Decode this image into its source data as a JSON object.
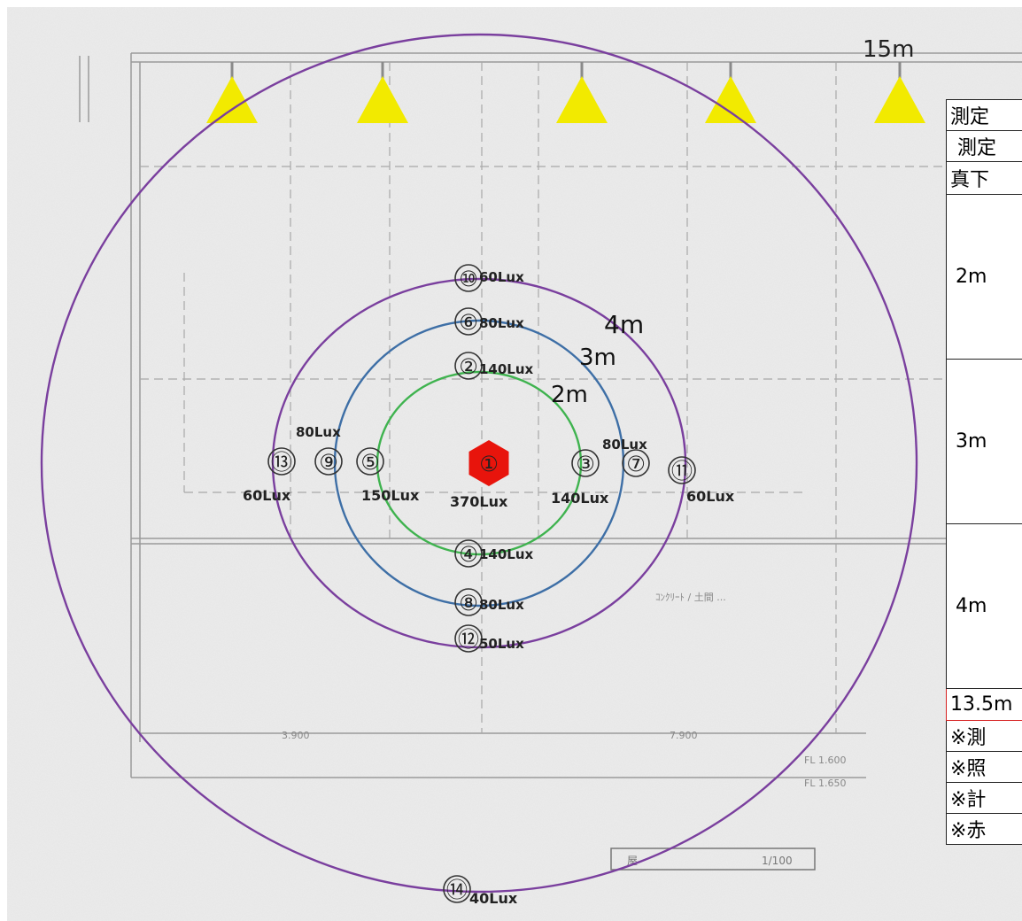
{
  "plan": {
    "scale_label": "15m",
    "floor_note": "ｺﾝｸﾘｰﾄ / 土間 ...",
    "dim_left": "3.900",
    "dim_right": "7.900",
    "level_1": "FL 1.600",
    "level_2": "FL 1.650",
    "stamp_1": "屋",
    "stamp_2": "1/100"
  },
  "rings": [
    {
      "label": "2m",
      "color": "#3fb34f"
    },
    {
      "label": "3m",
      "color": "#3e6fa6"
    },
    {
      "label": "4m",
      "color": "#7a3f9e"
    },
    {
      "label": "",
      "color": "#7a3f9e"
    }
  ],
  "points": [
    {
      "num": "①",
      "lux": "370Lux",
      "center": true
    },
    {
      "num": "②",
      "lux": "140Lux"
    },
    {
      "num": "③",
      "lux": "140Lux"
    },
    {
      "num": "④",
      "lux": "140Lux"
    },
    {
      "num": "⑤",
      "lux": "150Lux"
    },
    {
      "num": "⑥",
      "lux": "80Lux"
    },
    {
      "num": "⑦",
      "lux": "80Lux"
    },
    {
      "num": "⑧",
      "lux": "80Lux"
    },
    {
      "num": "⑨",
      "lux": "80Lux"
    },
    {
      "num": "⑩",
      "lux": "60Lux"
    },
    {
      "num": "⑪",
      "lux": "60Lux"
    },
    {
      "num": "⑫",
      "lux": "50Lux"
    },
    {
      "num": "⑬",
      "lux": "60Lux"
    },
    {
      "num": "⑭",
      "lux": "40Lux"
    }
  ],
  "table": {
    "rows": [
      "測定",
      "測定",
      "真下",
      "2m",
      "3m",
      "4m",
      "13.5m",
      "※測",
      "※照",
      "※計",
      "※赤"
    ]
  },
  "colors": {
    "lamp": "#f2ea00",
    "center_marker": "#e8140c",
    "ring_2m": "#3fb34f",
    "ring_3m": "#3e6fa6",
    "ring_4m": "#7a3f9e"
  }
}
